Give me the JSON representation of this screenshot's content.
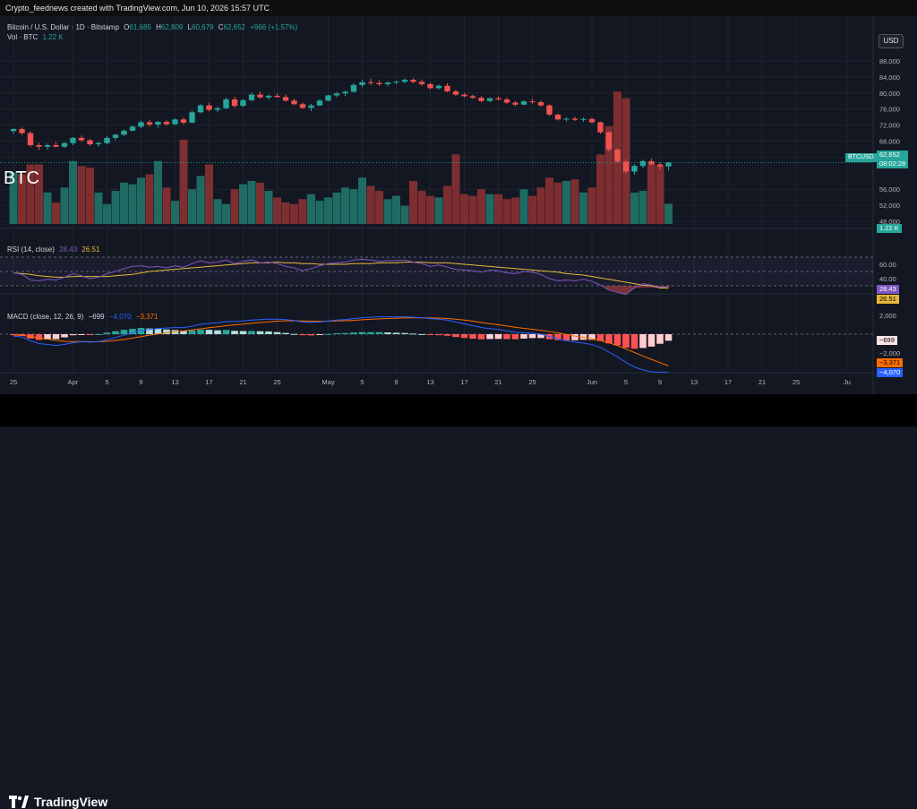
{
  "header_text": "Crypto_feednews created with TradingView.com, Jun 10, 2026 15:57 UTC",
  "main_legend": {
    "title": "Bitcoin / U.S. Dollar · 1D · Bitstamp",
    "o_label": "O",
    "o": "61,685",
    "h_label": "H",
    "h": "62,809",
    "l_label": "L",
    "l": "60,679",
    "c_label": "C",
    "c": "62,652",
    "change": "+966 (+1.57%)",
    "vol_label": "Vol · BTC",
    "vol": "1.22 K"
  },
  "currency_button": "USD",
  "watermark": "BTC",
  "price_tag": {
    "symbol": "BTCUSD",
    "price": "62,652",
    "countdown": "08:02:28"
  },
  "vol_tag": "1.22 K",
  "rsi_legend": {
    "title": "RSI (14, close)",
    "rsi": "28.43",
    "ma": "26.51"
  },
  "rsi_tags": [
    "28.43",
    "26.51"
  ],
  "macd_legend": {
    "title": "MACD (close, 12, 26, 9)",
    "hist": "−699",
    "macd": "−4,070",
    "signal": "−3,371"
  },
  "macd_tags": [
    "−699",
    "−3,371",
    "−4,070"
  ],
  "price_axis": [
    {
      "v": 88000,
      "t": "88,000"
    },
    {
      "v": 84000,
      "t": "84,000"
    },
    {
      "v": 80000,
      "t": "80,000"
    },
    {
      "v": 76000,
      "t": "76,000"
    },
    {
      "v": 72000,
      "t": "72,000"
    },
    {
      "v": 68000,
      "t": "68,000"
    },
    {
      "v": 64000,
      "t": "64,000"
    },
    {
      "v": 56000,
      "t": "56,000"
    },
    {
      "v": 52000,
      "t": "52,000"
    },
    {
      "v": 48000,
      "t": "48,000"
    }
  ],
  "rsi_axis": [
    {
      "v": 60,
      "t": "60.00"
    },
    {
      "v": 40,
      "t": "40.00"
    }
  ],
  "macd_axis": [
    {
      "v": 2000,
      "t": "2,000"
    },
    {
      "v": -2000,
      "t": "−2,000"
    }
  ],
  "time_axis": [
    {
      "d": 0,
      "t": "25"
    },
    {
      "d": 7,
      "t": "Apr"
    },
    {
      "d": 11,
      "t": "5"
    },
    {
      "d": 15,
      "t": "9"
    },
    {
      "d": 19,
      "t": "13"
    },
    {
      "d": 23,
      "t": "17"
    },
    {
      "d": 27,
      "t": "21"
    },
    {
      "d": 31,
      "t": "25"
    },
    {
      "d": 37,
      "t": "May"
    },
    {
      "d": 41,
      "t": "5"
    },
    {
      "d": 45,
      "t": "9"
    },
    {
      "d": 49,
      "t": "13"
    },
    {
      "d": 53,
      "t": "17"
    },
    {
      "d": 57,
      "t": "21"
    },
    {
      "d": 61,
      "t": "25"
    },
    {
      "d": 68,
      "t": "Jun"
    },
    {
      "d": 72,
      "t": "5"
    },
    {
      "d": 76,
      "t": "9"
    },
    {
      "d": 80,
      "t": "13"
    },
    {
      "d": 84,
      "t": "17"
    },
    {
      "d": 88,
      "t": "21"
    },
    {
      "d": 92,
      "t": "25"
    },
    {
      "d": 98,
      "t": "Ju"
    }
  ],
  "brand": "TradingView",
  "colors": {
    "up": "#26a69a",
    "down": "#ef5350",
    "vol_up": "#1f6b63",
    "vol_down": "#7d2e31",
    "rsi": "#7e57c2",
    "rsi_ma": "#e6b838",
    "macd": "#2962ff",
    "signal": "#ff6d00",
    "bg": "#131722"
  },
  "chart_data": {
    "type": "candlestick",
    "title": "Bitcoin / U.S. Dollar · 1D · Bitstamp",
    "x_note": "daily candles, Mar 24 – Jun 10",
    "ohlc": [
      [
        70500,
        71200,
        69800,
        71000
      ],
      [
        71000,
        71400,
        69600,
        70000
      ],
      [
        70000,
        70400,
        66500,
        67000
      ],
      [
        67000,
        67600,
        65800,
        66600
      ],
      [
        66600,
        67400,
        65900,
        67000
      ],
      [
        67000,
        67800,
        66400,
        66600
      ],
      [
        66600,
        67800,
        66300,
        67500
      ],
      [
        67500,
        69000,
        67000,
        68800
      ],
      [
        68800,
        69400,
        67800,
        68200
      ],
      [
        68200,
        68600,
        66800,
        67200
      ],
      [
        67200,
        67800,
        66600,
        67500
      ],
      [
        67500,
        69200,
        67200,
        68800
      ],
      [
        68800,
        69800,
        68200,
        69600
      ],
      [
        69600,
        70900,
        69300,
        70600
      ],
      [
        70600,
        71900,
        70400,
        71600
      ],
      [
        71600,
        73100,
        71200,
        72700
      ],
      [
        72700,
        73300,
        71600,
        72100
      ],
      [
        72100,
        73000,
        71300,
        72800
      ],
      [
        72800,
        73200,
        71800,
        72200
      ],
      [
        72200,
        73700,
        72000,
        73400
      ],
      [
        73400,
        73900,
        72100,
        72600
      ],
      [
        72600,
        75600,
        72400,
        75200
      ],
      [
        75200,
        77300,
        74900,
        76900
      ],
      [
        76900,
        77600,
        75400,
        75800
      ],
      [
        75800,
        76600,
        75200,
        76200
      ],
      [
        76200,
        78900,
        75900,
        78400
      ],
      [
        78400,
        79100,
        76300,
        76800
      ],
      [
        76800,
        78500,
        76500,
        78200
      ],
      [
        78200,
        80100,
        77900,
        79600
      ],
      [
        79600,
        80400,
        78500,
        78900
      ],
      [
        78900,
        79600,
        78400,
        79300
      ],
      [
        79300,
        79900,
        78800,
        79000
      ],
      [
        79000,
        79600,
        77800,
        78100
      ],
      [
        78100,
        78600,
        77000,
        77200
      ],
      [
        77200,
        77600,
        76000,
        76300
      ],
      [
        76300,
        77300,
        75500,
        76900
      ],
      [
        76900,
        78500,
        76700,
        78100
      ],
      [
        78100,
        79600,
        77900,
        79400
      ],
      [
        79400,
        80300,
        78900,
        79900
      ],
      [
        79900,
        80600,
        79200,
        80300
      ],
      [
        80300,
        82400,
        80100,
        82000
      ],
      [
        82000,
        83300,
        81400,
        82700
      ],
      [
        82700,
        83600,
        82000,
        82500
      ],
      [
        82500,
        83200,
        81800,
        82200
      ],
      [
        82200,
        82900,
        81700,
        82600
      ],
      [
        82600,
        83100,
        82200,
        82800
      ],
      [
        82800,
        83700,
        82400,
        83300
      ],
      [
        83300,
        83700,
        82400,
        82800
      ],
      [
        82800,
        83400,
        81800,
        82200
      ],
      [
        82200,
        82600,
        80900,
        81200
      ],
      [
        81200,
        82100,
        80900,
        81800
      ],
      [
        81800,
        82400,
        80200,
        80400
      ],
      [
        80400,
        80800,
        79300,
        79600
      ],
      [
        79600,
        80000,
        78900,
        79200
      ],
      [
        79200,
        79600,
        78500,
        78800
      ],
      [
        78800,
        79200,
        77700,
        78000
      ],
      [
        78000,
        78900,
        77700,
        78700
      ],
      [
        78700,
        79200,
        78100,
        78400
      ],
      [
        78400,
        78900,
        77300,
        77600
      ],
      [
        77600,
        78000,
        76700,
        77100
      ],
      [
        77100,
        78200,
        76900,
        77900
      ],
      [
        77900,
        78600,
        77300,
        77700
      ],
      [
        77700,
        78100,
        76600,
        76900
      ],
      [
        76900,
        77200,
        74300,
        74600
      ],
      [
        74600,
        74900,
        73100,
        73400
      ],
      [
        73400,
        73900,
        72900,
        73600
      ],
      [
        73600,
        74100,
        73000,
        73300
      ],
      [
        73300,
        73900,
        72800,
        73500
      ],
      [
        73500,
        73900,
        72400,
        72700
      ],
      [
        72700,
        72900,
        69800,
        70200
      ],
      [
        70200,
        70400,
        65400,
        65900
      ],
      [
        65900,
        66200,
        62600,
        62900
      ],
      [
        62900,
        63500,
        59800,
        60400
      ],
      [
        60400,
        62200,
        59600,
        61800
      ],
      [
        61800,
        63400,
        61200,
        63000
      ],
      [
        63000,
        63600,
        62000,
        62200
      ],
      [
        62200,
        62700,
        60800,
        61685
      ],
      [
        61685,
        62809,
        60679,
        62652
      ]
    ],
    "volume_btc_k": [
      3.1,
      3.0,
      3.6,
      3.6,
      1.9,
      1.3,
      2.2,
      3.8,
      3.5,
      3.4,
      1.9,
      1.2,
      2.0,
      2.5,
      2.4,
      2.8,
      3.0,
      3.8,
      2.2,
      1.4,
      5.1,
      2.1,
      2.9,
      3.6,
      1.5,
      1.2,
      2.1,
      2.4,
      2.6,
      2.5,
      2.0,
      1.6,
      1.3,
      1.2,
      1.5,
      1.8,
      1.4,
      1.6,
      1.9,
      2.2,
      2.1,
      2.8,
      2.3,
      2.0,
      1.5,
      1.7,
      1.1,
      2.6,
      2.0,
      1.7,
      1.6,
      2.3,
      4.2,
      1.8,
      1.7,
      2.1,
      1.8,
      1.8,
      1.5,
      1.6,
      2.1,
      1.7,
      2.2,
      2.8,
      2.5,
      2.6,
      2.7,
      1.9,
      2.2,
      4.2,
      5.9,
      8.0,
      7.6,
      1.9,
      2.0,
      3.6,
      3.5,
      1.22
    ],
    "rsi": [
      48,
      46,
      38,
      37,
      39,
      38,
      42,
      47,
      44,
      40,
      42,
      47,
      50,
      54,
      57,
      58,
      56,
      57,
      55,
      58,
      56,
      61,
      65,
      62,
      63,
      66,
      61,
      64,
      66,
      62,
      63,
      61,
      57,
      55,
      51,
      54,
      58,
      61,
      62,
      63,
      66,
      67,
      66,
      64,
      65,
      65,
      66,
      63,
      61,
      57,
      59,
      56,
      53,
      52,
      51,
      49,
      52,
      51,
      48,
      47,
      50,
      49,
      46,
      40,
      37,
      38,
      37,
      39,
      36,
      31,
      24,
      21,
      18,
      27,
      33,
      31,
      28,
      28.43
    ],
    "rsi_ma": [
      48,
      47,
      46,
      44,
      43,
      42,
      42,
      43,
      43,
      43,
      43,
      43,
      44,
      45,
      46,
      48,
      50,
      51,
      52,
      53,
      54,
      55,
      56,
      57,
      58,
      59,
      60,
      61,
      62,
      62,
      62,
      63,
      62,
      62,
      61,
      61,
      60,
      60,
      60,
      60,
      61,
      61,
      61,
      62,
      62,
      62,
      63,
      63,
      63,
      62,
      62,
      62,
      61,
      60,
      59,
      58,
      57,
      56,
      55,
      54,
      53,
      52,
      51,
      50,
      49,
      47,
      46,
      45,
      43,
      41,
      39,
      37,
      35,
      33,
      31,
      30,
      27,
      26.51
    ],
    "macd": [
      -200,
      -300,
      -700,
      -1000,
      -1100,
      -1200,
      -1100,
      -900,
      -800,
      -850,
      -800,
      -600,
      -350,
      -100,
      150,
      400,
      500,
      600,
      650,
      700,
      700,
      850,
      1050,
      1150,
      1200,
      1350,
      1350,
      1400,
      1500,
      1550,
      1600,
      1600,
      1550,
      1450,
      1300,
      1250,
      1300,
      1400,
      1500,
      1550,
      1650,
      1750,
      1800,
      1850,
      1850,
      1850,
      1850,
      1800,
      1750,
      1650,
      1600,
      1500,
      1300,
      1100,
      900,
      700,
      600,
      500,
      350,
      200,
      150,
      100,
      0,
      -250,
      -500,
      -700,
      -850,
      -950,
      -1100,
      -1400,
      -1900,
      -2400,
      -3000,
      -3500,
      -3800,
      -4000,
      -4050,
      -4070
    ],
    "signal": [
      -100,
      -130,
      -240,
      -390,
      -530,
      -670,
      -760,
      -790,
      -790,
      -800,
      -800,
      -760,
      -670,
      -560,
      -420,
      -260,
      -110,
      30,
      150,
      260,
      350,
      450,
      570,
      690,
      790,
      900,
      990,
      1070,
      1160,
      1240,
      1310,
      1380,
      1420,
      1430,
      1410,
      1380,
      1370,
      1380,
      1400,
      1430,
      1470,
      1530,
      1580,
      1630,
      1670,
      1700,
      1730,
      1740,
      1740,
      1730,
      1710,
      1670,
      1600,
      1500,
      1380,
      1250,
      1120,
      1000,
      870,
      740,
      620,
      520,
      410,
      280,
      130,
      -40,
      -200,
      -350,
      -500,
      -680,
      -920,
      -1220,
      -1570,
      -1950,
      -2330,
      -2680,
      -3030,
      -3371
    ],
    "axes": {
      "price_range": [
        46000,
        92000
      ],
      "rsi_levels": [
        70,
        50,
        30
      ]
    }
  }
}
